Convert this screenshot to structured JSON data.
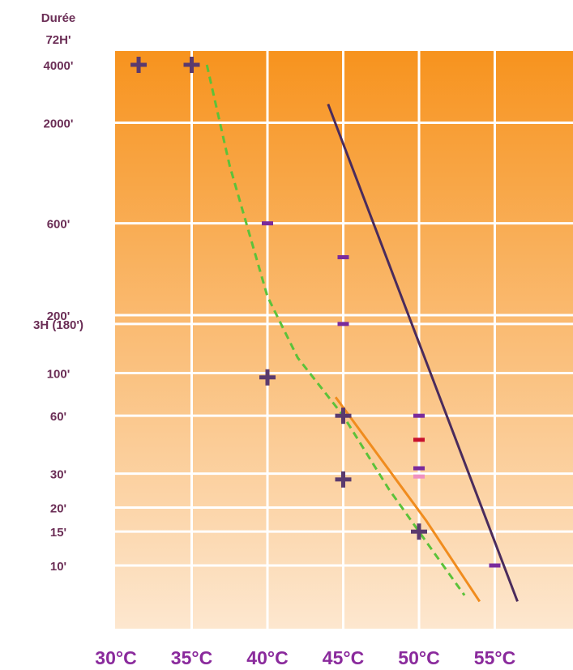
{
  "chart_data": {
    "type": "scatter",
    "title": "",
    "y_title": "Durée",
    "y_top_label": "72H'",
    "xlabel": "",
    "ylabel": "Durée",
    "y_scale": "log",
    "xlim": [
      30,
      55
    ],
    "grid": true,
    "x_ticks": [
      {
        "value": 30,
        "label": "30°C"
      },
      {
        "value": 35,
        "label": "35°C"
      },
      {
        "value": 40,
        "label": "40°C"
      },
      {
        "value": 45,
        "label": "45°C"
      },
      {
        "value": 50,
        "label": "50°C"
      },
      {
        "value": 55,
        "label": "55°C"
      }
    ],
    "y_ticks": [
      {
        "value": 4000,
        "label": "4000'"
      },
      {
        "value": 2000,
        "label": "2000'"
      },
      {
        "value": 600,
        "label": "600'"
      },
      {
        "value": 200,
        "label": "200'"
      },
      {
        "value": 180,
        "label": "3H (180')"
      },
      {
        "value": 100,
        "label": "100'"
      },
      {
        "value": 60,
        "label": "60'"
      },
      {
        "value": 30,
        "label": "30'"
      },
      {
        "value": 20,
        "label": "20'"
      },
      {
        "value": 15,
        "label": "15'"
      },
      {
        "value": 10,
        "label": "10'"
      }
    ],
    "markers": [
      {
        "type": "plus",
        "x": 31.5,
        "y": 4000,
        "color": "#5a3a6e"
      },
      {
        "type": "plus",
        "x": 35,
        "y": 4000,
        "color": "#5a3a6e"
      },
      {
        "type": "plus",
        "x": 40,
        "y": 95,
        "color": "#5a3a6e"
      },
      {
        "type": "plus",
        "x": 45,
        "y": 60,
        "color": "#5a3a6e"
      },
      {
        "type": "plus",
        "x": 45,
        "y": 28,
        "color": "#5a3a6e"
      },
      {
        "type": "plus",
        "x": 50,
        "y": 15,
        "color": "#5a3a6e"
      },
      {
        "type": "minus",
        "x": 40,
        "y": 600,
        "color": "#7a2a9c"
      },
      {
        "type": "minus",
        "x": 45,
        "y": 400,
        "color": "#7a2a9c"
      },
      {
        "type": "minus",
        "x": 45,
        "y": 180,
        "color": "#7a2a9c"
      },
      {
        "type": "minus",
        "x": 50,
        "y": 60,
        "color": "#7a2a9c"
      },
      {
        "type": "minus",
        "x": 50,
        "y": 45,
        "color": "#c8102e"
      },
      {
        "type": "minus",
        "x": 50,
        "y": 32,
        "color": "#7a2a9c"
      },
      {
        "type": "minus",
        "x": 50,
        "y": 29,
        "color": "#f090c0"
      },
      {
        "type": "minus",
        "x": 55,
        "y": 10,
        "color": "#7a2a9c"
      }
    ],
    "lines": [
      {
        "style": "dashed",
        "color": "#5cc23a",
        "points": [
          [
            36,
            4000
          ],
          [
            37.5,
            1200
          ],
          [
            40,
            250
          ],
          [
            42,
            120
          ],
          [
            45,
            60
          ],
          [
            48,
            25
          ],
          [
            50,
            15
          ],
          [
            53,
            7
          ]
        ]
      },
      {
        "style": "solid",
        "color": "#f08c1e",
        "points": [
          [
            44.5,
            75
          ],
          [
            50.5,
            17
          ],
          [
            54,
            6.5
          ]
        ]
      },
      {
        "style": "solid",
        "color": "#4a2b5c",
        "points": [
          [
            44,
            2500
          ],
          [
            56.5,
            6.5
          ]
        ]
      }
    ],
    "colors": {
      "background_top": "#f7931e",
      "background_bottom": "#fde7cf",
      "grid": "#ffffff",
      "y_labels": "#6b2e56",
      "x_labels": "#8a2a9c"
    }
  }
}
